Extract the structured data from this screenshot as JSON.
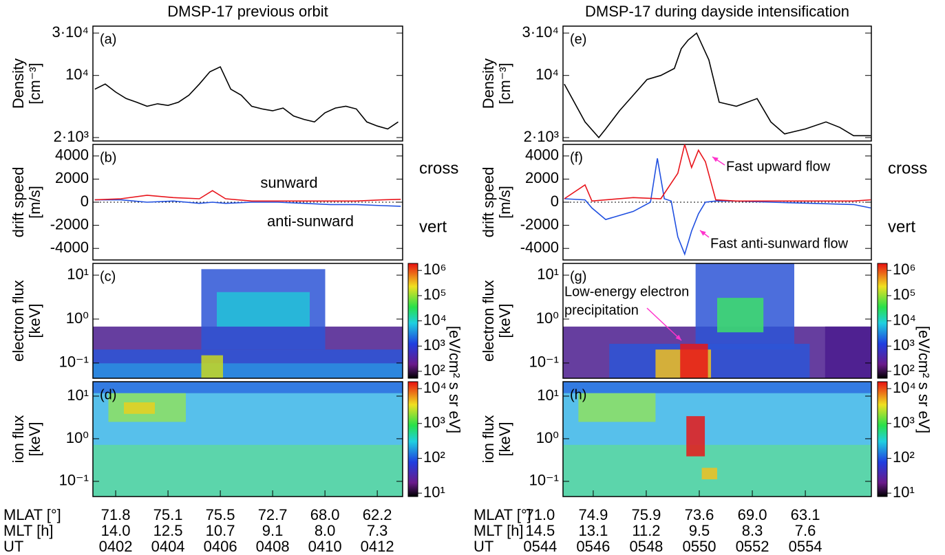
{
  "chart_data": [
    {
      "type": "line",
      "title": "DMSP-17 previous orbit",
      "panel_label": "(a)",
      "ylabel": [
        "Density",
        "[cm⁻³]"
      ],
      "log_y": true,
      "xlim": [
        401.13,
        412.97
      ],
      "ylim": [
        1830,
        35900
      ],
      "yticks": [
        {
          "value": 2000,
          "label": "2·10³"
        },
        {
          "value": 10000,
          "label": "10⁴"
        },
        {
          "value": 30000,
          "label": "3·10⁴"
        }
      ],
      "series": [
        {
          "color": "#000000",
          "x": [
            401.2,
            401.6,
            402.0,
            402.4,
            402.8,
            403.2,
            403.6,
            404.0,
            404.4,
            404.8,
            405.2,
            405.6,
            406.0,
            406.4,
            406.8,
            407.2,
            407.6,
            408.0,
            408.4,
            408.8,
            409.2,
            409.6,
            410.0,
            410.4,
            410.8,
            411.2,
            411.6,
            412.0,
            412.4,
            412.8
          ],
          "values": [
            7000,
            8000,
            6500,
            5500,
            5000,
            4500,
            4800,
            4600,
            5000,
            6000,
            8000,
            11000,
            12500,
            7000,
            6000,
            4500,
            4200,
            4000,
            4300,
            3500,
            3200,
            3000,
            3800,
            4300,
            4500,
            4200,
            3000,
            2700,
            2500,
            3000
          ]
        }
      ]
    },
    {
      "type": "line",
      "panel_label": "(b)",
      "ylabel": [
        "drift speed",
        "[m/s]"
      ],
      "xlim": [
        401.13,
        412.97
      ],
      "ylim": [
        -5000,
        5000
      ],
      "yticks": [
        -4000,
        -2000,
        0,
        2000,
        4000
      ],
      "hline": 0,
      "series": [
        {
          "name": "cross",
          "color": "#1f4fe0",
          "x": [
            401.2,
            402.2,
            403.2,
            404.2,
            405.2,
            405.7,
            406.2,
            407.2,
            408.2,
            409.2,
            410.2,
            411.2,
            412.2,
            412.9
          ],
          "values": [
            200,
            200,
            0,
            100,
            -100,
            0,
            -100,
            0,
            0,
            -100,
            -200,
            -200,
            -300,
            -350
          ]
        },
        {
          "name": "vert",
          "color": "#e8141b",
          "x": [
            401.2,
            402.2,
            403.2,
            404.2,
            405.2,
            405.7,
            406.2,
            407.2,
            408.2,
            409.2,
            410.2,
            411.2,
            412.2,
            412.9
          ],
          "values": [
            200,
            300,
            600,
            400,
            300,
            1000,
            300,
            100,
            100,
            100,
            100,
            100,
            200,
            250
          ]
        }
      ],
      "annotations": [
        {
          "text": "sunward",
          "color": "#1f4fe0"
        },
        {
          "text": "anti-sunward",
          "color": "#1f4fe0"
        }
      ]
    },
    {
      "type": "spectrogram",
      "panel_label": "(c)",
      "ylabel": [
        "electron flux",
        "[keV]"
      ],
      "log_y": true,
      "ylim": [
        0.045,
        18.5
      ],
      "yticks": [
        {
          "value": 0.1,
          "label": "10⁻¹"
        },
        {
          "value": 1,
          "label": "10⁰"
        },
        {
          "value": 10,
          "label": "10¹"
        }
      ],
      "clim": [
        53,
        1900000
      ],
      "cticks": [
        {
          "value": 100,
          "label": "10²"
        },
        {
          "value": 1000,
          "label": "10³"
        },
        {
          "value": 10000,
          "label": "10⁴"
        },
        {
          "value": 100000,
          "label": "10⁵"
        },
        {
          "value": 1000000,
          "label": "10⁶"
        }
      ],
      "colorbar_label": "[eV/cm² s sr eV]"
    },
    {
      "type": "spectrogram",
      "panel_label": "(d)",
      "ylabel": [
        "ion flux",
        "[keV]"
      ],
      "log_y": true,
      "ylim": [
        0.044,
        21.8
      ],
      "yticks": [
        {
          "value": 0.1,
          "label": "10⁻¹"
        },
        {
          "value": 1,
          "label": "10⁰"
        },
        {
          "value": 10,
          "label": "10¹"
        }
      ],
      "clim": [
        8,
        15800
      ],
      "cticks": [
        {
          "value": 10,
          "label": "10¹"
        },
        {
          "value": 100,
          "label": "10²"
        },
        {
          "value": 1000,
          "label": "10³"
        },
        {
          "value": 10000,
          "label": "10⁴"
        }
      ],
      "xlim": [
        401.13,
        412.97
      ],
      "xlabel": "UT",
      "xticks": [
        {
          "value": 402,
          "label": "0402"
        },
        {
          "value": 404,
          "label": "0404"
        },
        {
          "value": 406,
          "label": "0406"
        },
        {
          "value": 408,
          "label": "0408"
        },
        {
          "value": 410,
          "label": "0410"
        },
        {
          "value": 412,
          "label": "0412"
        }
      ],
      "x_rows": [
        {
          "name": "MLAT [°]",
          "labels": [
            "71.8",
            "75.1",
            "75.5",
            "72.7",
            "68.0",
            "62.2"
          ]
        },
        {
          "name": "MLT [h]",
          "labels": [
            "14.0",
            "12.5",
            "10.7",
            "9.1",
            "8.0",
            "7.3"
          ]
        }
      ]
    },
    {
      "type": "line",
      "title": "DMSP-17 during dayside intensification",
      "panel_label": "(e)",
      "ylabel": [
        "Density",
        "[cm⁻³]"
      ],
      "log_y": true,
      "xlim": [
        544.86,
        556.49
      ],
      "ylim": [
        1830,
        35900
      ],
      "yticks": [
        {
          "value": 2000,
          "label": "2·10³"
        },
        {
          "value": 10000,
          "label": "10⁴"
        },
        {
          "value": 30000,
          "label": "3·10⁴"
        }
      ],
      "series": [
        {
          "color": "#000000",
          "x": [
            544.91,
            545.69,
            546.21,
            546.47,
            546.99,
            547.51,
            548.03,
            548.55,
            549.06,
            549.32,
            549.58,
            549.9,
            550.36,
            550.75,
            551.4,
            552.18,
            552.7,
            553.22,
            554.0,
            554.78,
            555.3,
            555.82,
            556.47
          ],
          "values": [
            8000,
            3000,
            2000,
            2500,
            4000,
            6000,
            9000,
            10000,
            12000,
            20000,
            25000,
            30000,
            15000,
            5000,
            4500,
            5500,
            3000,
            2200,
            2500,
            3000,
            2600,
            2100,
            2100
          ]
        }
      ]
    },
    {
      "type": "line",
      "panel_label": "(f)",
      "ylabel": [
        "drift speed",
        "[m/s]"
      ],
      "xlim": [
        544.86,
        556.49
      ],
      "ylim": [
        -5000,
        5000
      ],
      "yticks": [
        -4000,
        -2000,
        0,
        2000,
        4000
      ],
      "hline": 0,
      "series": [
        {
          "name": "cross",
          "color": "#1f4fe0",
          "x": [
            544.91,
            545.69,
            545.95,
            546.47,
            547.51,
            548.16,
            548.42,
            548.68,
            548.94,
            549.19,
            549.45,
            549.71,
            549.97,
            550.23,
            550.62,
            551.4,
            552.7,
            554.26,
            555.82,
            556.47
          ],
          "values": [
            300,
            200,
            -500,
            -1500,
            -800,
            0,
            3800,
            300,
            100,
            -3000,
            -4500,
            -2500,
            -1000,
            0,
            100,
            100,
            0,
            -100,
            -200,
            -500
          ]
        },
        {
          "name": "vert",
          "color": "#e8141b",
          "x": [
            544.91,
            545.69,
            545.95,
            546.47,
            547.51,
            548.55,
            549.19,
            549.45,
            549.71,
            549.97,
            550.23,
            550.62,
            551.4,
            552.7,
            554.26,
            555.82,
            556.47
          ],
          "values": [
            300,
            1500,
            100,
            200,
            400,
            300,
            2500,
            5000,
            3000,
            4500,
            3500,
            200,
            100,
            100,
            100,
            100,
            200
          ]
        }
      ],
      "annotations": [
        {
          "text": "Fast upward flow",
          "color": "#ff33cc"
        },
        {
          "text": "Fast anti-sunward flow",
          "color": "#ff33cc"
        }
      ]
    },
    {
      "type": "spectrogram",
      "panel_label": "(g)",
      "ylabel": [
        "electron flux",
        "[keV]"
      ],
      "log_y": true,
      "ylim": [
        0.045,
        18.5
      ],
      "yticks": [
        {
          "value": 0.1,
          "label": "10⁻¹"
        },
        {
          "value": 1,
          "label": "10⁰"
        },
        {
          "value": 10,
          "label": "10¹"
        }
      ],
      "clim": [
        53,
        1900000
      ],
      "cticks": [
        {
          "value": 100,
          "label": "10²"
        },
        {
          "value": 1000,
          "label": "10³"
        },
        {
          "value": 10000,
          "label": "10⁴"
        },
        {
          "value": 100000,
          "label": "10⁵"
        },
        {
          "value": 1000000,
          "label": "10⁶"
        }
      ],
      "colorbar_label": "[eV/cm² s sr eV]",
      "annotations": [
        {
          "text": "Low-energy electron",
          "color": "#ff33cc"
        },
        {
          "text": "precipitation",
          "color": "#ff33cc"
        }
      ]
    },
    {
      "type": "spectrogram",
      "panel_label": "(h)",
      "ylabel": [
        "ion flux",
        "[keV]"
      ],
      "log_y": true,
      "ylim": [
        0.044,
        21.8
      ],
      "yticks": [
        {
          "value": 0.1,
          "label": "10⁻¹"
        },
        {
          "value": 1,
          "label": "10⁰"
        },
        {
          "value": 10,
          "label": "10¹"
        }
      ],
      "clim": [
        8,
        15800
      ],
      "cticks": [
        {
          "value": 10,
          "label": "10¹"
        },
        {
          "value": 100,
          "label": "10²"
        },
        {
          "value": 1000,
          "label": "10³"
        },
        {
          "value": 10000,
          "label": "10⁴"
        }
      ],
      "xlim": [
        544.86,
        556.49
      ],
      "xlabel": "UT",
      "xticks": [
        {
          "value": 544,
          "label": "0544"
        },
        {
          "value": 546,
          "label": "0546"
        },
        {
          "value": 548,
          "label": "0548"
        },
        {
          "value": 550,
          "label": "0550"
        },
        {
          "value": 552,
          "label": "0552"
        },
        {
          "value": 554,
          "label": "0554"
        }
      ],
      "x_rows": [
        {
          "name": "MLAT [°]",
          "labels": [
            "71.0",
            "74.9",
            "75.9",
            "73.6",
            "69.0",
            "63.1"
          ]
        },
        {
          "name": "MLT [h]",
          "labels": [
            "14.5",
            "13.1",
            "11.2",
            "9.5",
            "8.3",
            "7.6"
          ]
        }
      ]
    }
  ]
}
